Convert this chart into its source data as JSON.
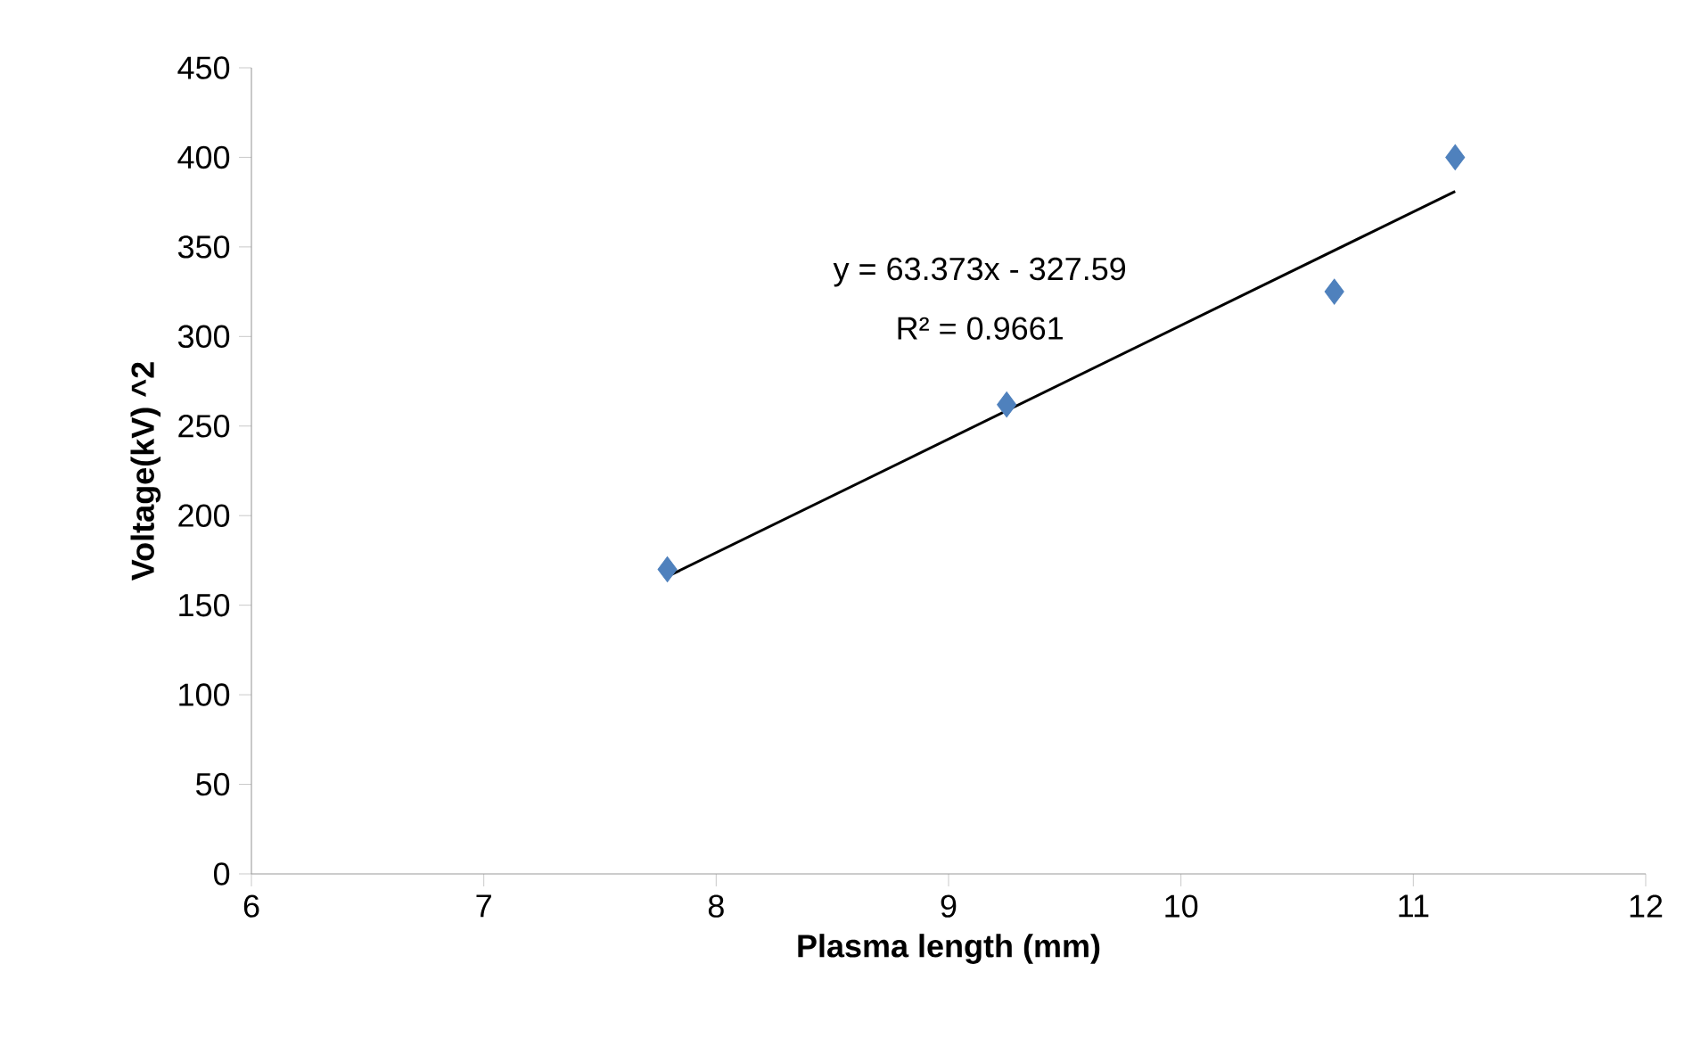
{
  "chart_data": {
    "type": "scatter",
    "xlabel": "Plasma length (mm)",
    "ylabel": "Voltage(kV) ^2",
    "series": [
      {
        "type": "scatter",
        "color": "#4f81bd",
        "marker": "diamond",
        "x": [
          7.79,
          9.25,
          10.66,
          11.18
        ],
        "values": [
          170,
          262,
          325,
          400
        ]
      },
      {
        "type": "line",
        "color": "#000000",
        "marker": "none",
        "line_style": "solid",
        "x": [
          7.79,
          11.18
        ],
        "values": [
          166,
          381
        ]
      }
    ],
    "xlim": [
      6,
      12
    ],
    "ylim": [
      0,
      450
    ],
    "xticks": [
      6,
      7,
      8,
      9,
      10,
      11,
      12
    ],
    "yticks": [
      0,
      50,
      100,
      150,
      200,
      250,
      300,
      350,
      400,
      450
    ],
    "annotations": [
      "y = 63.373x - 327.59",
      "R² = 0.9661"
    ]
  }
}
